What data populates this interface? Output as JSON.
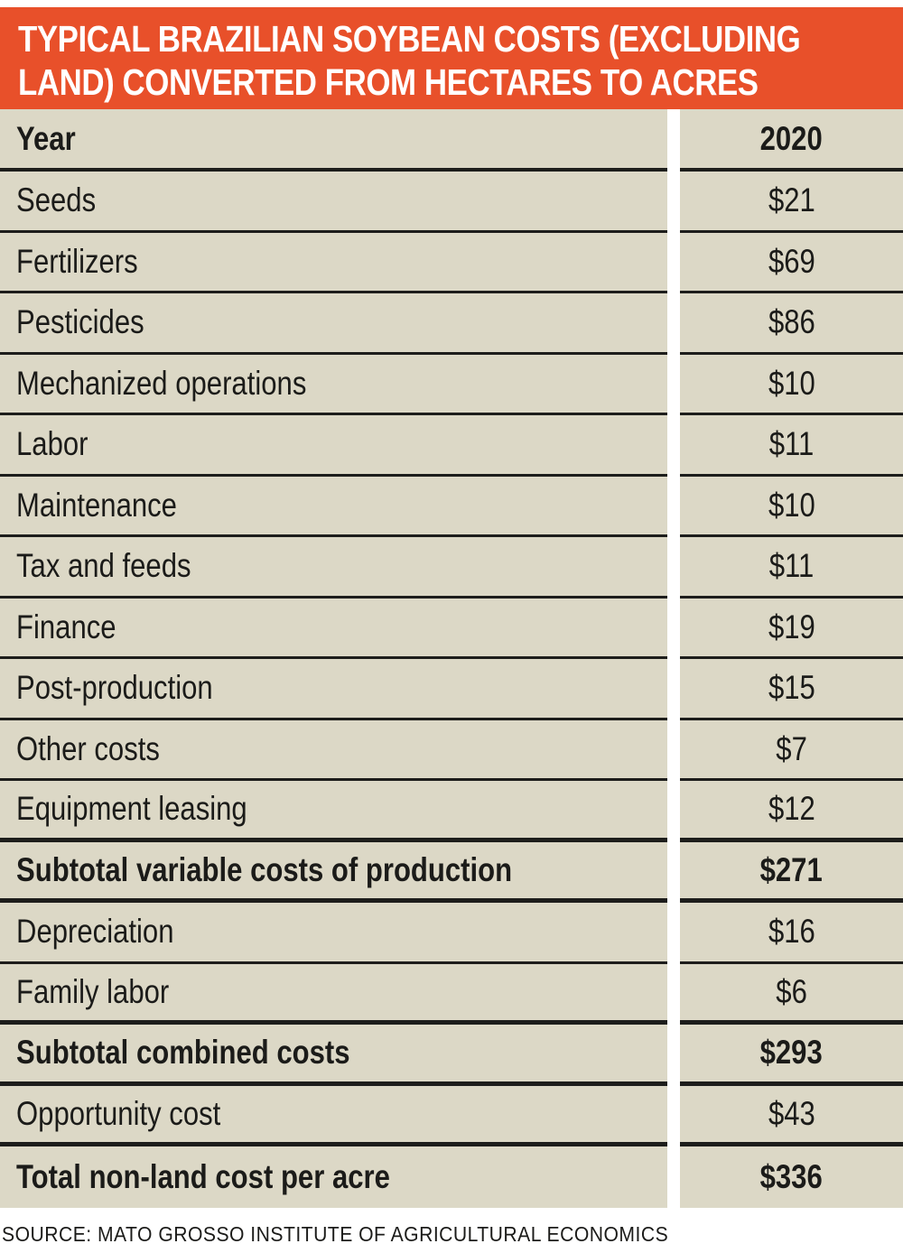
{
  "title": {
    "line1": "TYPICAL BRAZILIAN SOYBEAN COSTS (EXCLUDING",
    "line2": "LAND) CONVERTED FROM HECTARES TO ACRES",
    "full": "TYPICAL BRAZILIAN SOYBEAN COSTS (EXCLUDING LAND) CONVERTED FROM HECTARES TO ACRES"
  },
  "table": {
    "header": {
      "label": "Year",
      "value": "2020"
    },
    "rows": [
      {
        "label": "Seeds",
        "value": "$21"
      },
      {
        "label": "Fertilizers",
        "value": "$69"
      },
      {
        "label": "Pesticides",
        "value": "$86"
      },
      {
        "label": "Mechanized operations",
        "value": "$10"
      },
      {
        "label": "Labor",
        "value": "$11"
      },
      {
        "label": "Maintenance",
        "value": "$10"
      },
      {
        "label": "Tax and feeds",
        "value": "$11"
      },
      {
        "label": "Finance",
        "value": "$19"
      },
      {
        "label": "Post-production",
        "value": "$15"
      },
      {
        "label": "Other costs",
        "value": "$7"
      },
      {
        "label": "Equipment leasing",
        "value": "$12"
      },
      {
        "label": "Subtotal variable costs of production",
        "value": "$271"
      },
      {
        "label": "Depreciation",
        "value": "$16"
      },
      {
        "label": "Family labor",
        "value": "$6"
      },
      {
        "label": "Subtotal combined costs",
        "value": "$293"
      },
      {
        "label": "Opportunity cost",
        "value": "$43"
      },
      {
        "label": "Total non-land cost per acre",
        "value": "$336"
      }
    ]
  },
  "source": "SOURCE: MATO GROSSO INSTITUTE OF AGRICULTURAL ECONOMICS",
  "colors": {
    "accent": "#E8502A",
    "row_bg": "#DCD8C6",
    "line": "#1D1D1B",
    "text": "#1B1B19",
    "title_text": "#FFFFFF",
    "page_bg": "#FFFFFF"
  },
  "chart_data": {
    "type": "table",
    "title": "TYPICAL BRAZILIAN SOYBEAN COSTS (EXCLUDING LAND) CONVERTED FROM HECTARES TO ACRES",
    "columns": [
      "Year",
      "2020"
    ],
    "categories": [
      "Seeds",
      "Fertilizers",
      "Pesticides",
      "Mechanized operations",
      "Labor",
      "Maintenance",
      "Tax and feeds",
      "Finance",
      "Post-production",
      "Other costs",
      "Equipment leasing",
      "Subtotal variable costs of production",
      "Depreciation",
      "Family labor",
      "Subtotal combined costs",
      "Opportunity cost",
      "Total non-land cost per acre"
    ],
    "values": [
      21,
      69,
      86,
      10,
      11,
      10,
      11,
      19,
      15,
      7,
      12,
      271,
      16,
      6,
      293,
      43,
      336
    ],
    "unit": "USD per acre",
    "emphasized_rows": [
      "Subtotal variable costs of production",
      "Subtotal combined costs",
      "Total non-land cost per acre"
    ],
    "source": "SOURCE: MATO GROSSO INSTITUTE OF AGRICULTURAL ECONOMICS"
  }
}
